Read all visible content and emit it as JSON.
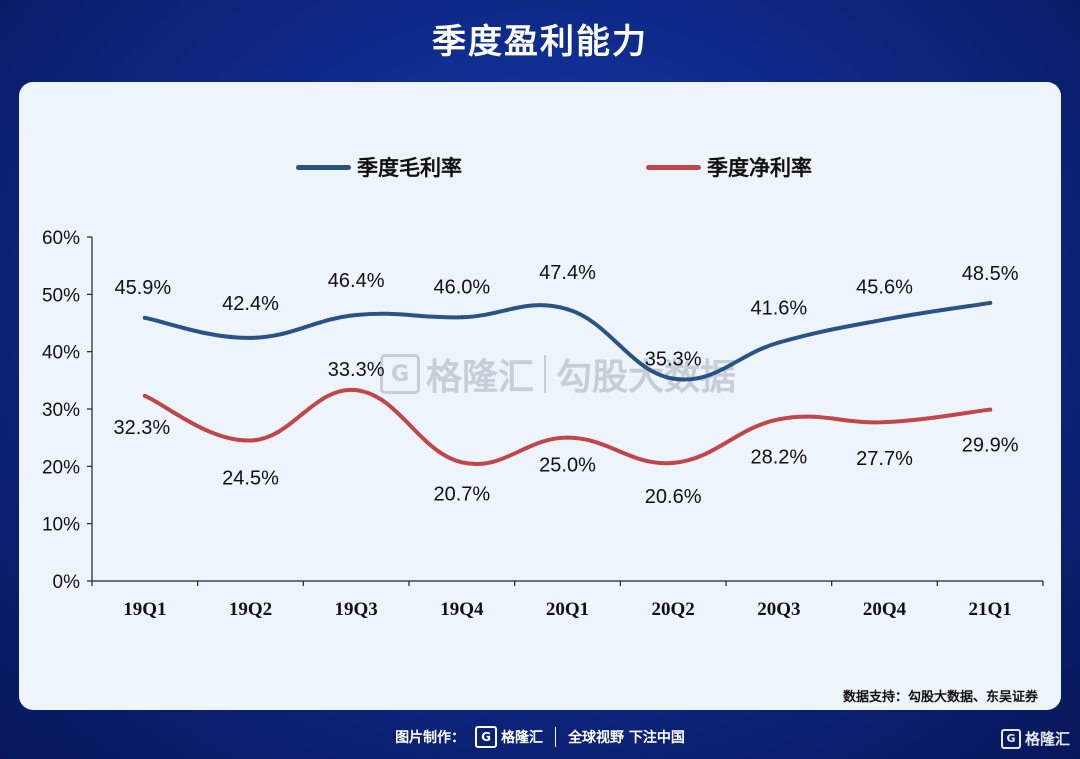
{
  "header": {
    "title": "季度盈利能力"
  },
  "legend": [
    {
      "label": "季度毛利率",
      "color": "#2a5286"
    },
    {
      "label": "季度净利率",
      "color": "#c0464a"
    }
  ],
  "watermark": {
    "logo_text": "格隆汇",
    "brand": "勾股大数据"
  },
  "source": "数据支持：勾股大数据、东吴证券",
  "footer": {
    "made_by": "图片制作：",
    "logo_text": "格隆汇",
    "slogan": "全球视野 下注中国"
  },
  "corner_logo": "格隆汇",
  "chart_data": {
    "type": "line",
    "categories": [
      "19Q1",
      "19Q2",
      "19Q3",
      "19Q4",
      "20Q1",
      "20Q2",
      "20Q3",
      "20Q4",
      "21Q1"
    ],
    "series": [
      {
        "name": "季度毛利率",
        "color": "#2a5286",
        "values": [
          45.9,
          42.4,
          46.4,
          46.0,
          47.4,
          35.3,
          41.6,
          45.6,
          48.5
        ],
        "labels": [
          "45.9%",
          "42.4%",
          "46.4%",
          "46.0%",
          "47.4%",
          "35.3%",
          "41.6%",
          "45.6%",
          "48.5%"
        ]
      },
      {
        "name": "季度净利率",
        "color": "#c0464a",
        "values": [
          32.3,
          24.5,
          33.3,
          20.7,
          25.0,
          20.6,
          28.2,
          27.7,
          29.9
        ],
        "labels": [
          "32.3%",
          "24.5%",
          "33.3%",
          "20.7%",
          "25.0%",
          "20.6%",
          "28.2%",
          "27.7%",
          "29.9%"
        ]
      }
    ],
    "ylim": [
      0,
      60
    ],
    "yticks": [
      "0%",
      "10%",
      "20%",
      "30%",
      "40%",
      "50%",
      "60%"
    ],
    "smooth": true,
    "grid": false,
    "legend_position": "top-center"
  }
}
